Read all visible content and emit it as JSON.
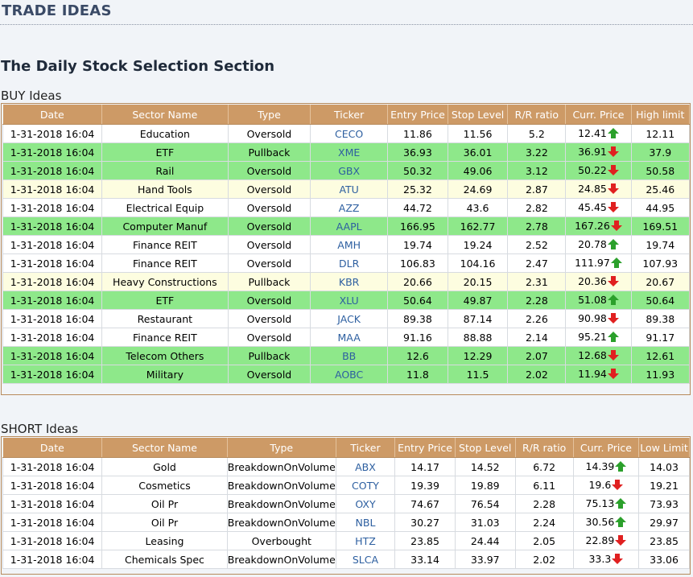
{
  "header": {
    "title": "TRADE IDEAS"
  },
  "section": {
    "title": "The Daily Stock Selection Section"
  },
  "colors": {
    "header": "#cd9a66",
    "green_row": "#8ee88a",
    "yellow_row": "#fdfde0",
    "up": "#2ba02b",
    "down": "#e02020"
  },
  "buy": {
    "label": "BUY Ideas",
    "columns": [
      "Date",
      "Sector Name",
      "Type",
      "Ticker",
      "Entry Price",
      "Stop Level",
      "R/R ratio",
      "Curr. Price",
      "High limit"
    ],
    "rows": [
      {
        "date": "1-31-2018 16:04",
        "sector": "Education",
        "type": "Oversold",
        "ticker": "CECO",
        "entry": "11.86",
        "stop": "11.56",
        "rr": "5.2",
        "curr": "12.41",
        "dir": "up",
        "limit": "12.11",
        "shade": "white"
      },
      {
        "date": "1-31-2018 16:04",
        "sector": "ETF",
        "type": "Pullback",
        "ticker": "XME",
        "entry": "36.93",
        "stop": "36.01",
        "rr": "3.22",
        "curr": "36.91",
        "dir": "down",
        "limit": "37.9",
        "shade": "green"
      },
      {
        "date": "1-31-2018 16:04",
        "sector": "Rail",
        "type": "Oversold",
        "ticker": "GBX",
        "entry": "50.32",
        "stop": "49.06",
        "rr": "3.12",
        "curr": "50.22",
        "dir": "down",
        "limit": "50.58",
        "shade": "green"
      },
      {
        "date": "1-31-2018 16:04",
        "sector": "Hand Tools",
        "type": "Oversold",
        "ticker": "ATU",
        "entry": "25.32",
        "stop": "24.69",
        "rr": "2.87",
        "curr": "24.85",
        "dir": "down",
        "limit": "25.46",
        "shade": "yellow"
      },
      {
        "date": "1-31-2018 16:04",
        "sector": "Electrical Equip",
        "type": "Oversold",
        "ticker": "AZZ",
        "entry": "44.72",
        "stop": "43.6",
        "rr": "2.82",
        "curr": "45.45",
        "dir": "down",
        "limit": "44.95",
        "shade": "white"
      },
      {
        "date": "1-31-2018 16:04",
        "sector": "Computer Manuf",
        "type": "Oversold",
        "ticker": "AAPL",
        "entry": "166.95",
        "stop": "162.77",
        "rr": "2.78",
        "curr": "167.26",
        "dir": "down",
        "limit": "169.51",
        "shade": "green"
      },
      {
        "date": "1-31-2018 16:04",
        "sector": "Finance REIT",
        "type": "Oversold",
        "ticker": "AMH",
        "entry": "19.74",
        "stop": "19.24",
        "rr": "2.52",
        "curr": "20.78",
        "dir": "up",
        "limit": "19.74",
        "shade": "white"
      },
      {
        "date": "1-31-2018 16:04",
        "sector": "Finance REIT",
        "type": "Oversold",
        "ticker": "DLR",
        "entry": "106.83",
        "stop": "104.16",
        "rr": "2.47",
        "curr": "111.97",
        "dir": "up",
        "limit": "107.93",
        "shade": "white"
      },
      {
        "date": "1-31-2018 16:04",
        "sector": "Heavy Constructions",
        "type": "Pullback",
        "ticker": "KBR",
        "entry": "20.66",
        "stop": "20.15",
        "rr": "2.31",
        "curr": "20.36",
        "dir": "down",
        "limit": "20.67",
        "shade": "yellow"
      },
      {
        "date": "1-31-2018 16:04",
        "sector": "ETF",
        "type": "Oversold",
        "ticker": "XLU",
        "entry": "50.64",
        "stop": "49.87",
        "rr": "2.28",
        "curr": "51.08",
        "dir": "up",
        "limit": "50.64",
        "shade": "green"
      },
      {
        "date": "1-31-2018 16:04",
        "sector": "Restaurant",
        "type": "Oversold",
        "ticker": "JACK",
        "entry": "89.38",
        "stop": "87.14",
        "rr": "2.26",
        "curr": "90.98",
        "dir": "down",
        "limit": "89.38",
        "shade": "white"
      },
      {
        "date": "1-31-2018 16:04",
        "sector": "Finance REIT",
        "type": "Oversold",
        "ticker": "MAA",
        "entry": "91.16",
        "stop": "88.88",
        "rr": "2.14",
        "curr": "95.21",
        "dir": "up",
        "limit": "91.17",
        "shade": "white"
      },
      {
        "date": "1-31-2018 16:04",
        "sector": "Telecom Others",
        "type": "Pullback",
        "ticker": "BB",
        "entry": "12.6",
        "stop": "12.29",
        "rr": "2.07",
        "curr": "12.68",
        "dir": "down",
        "limit": "12.61",
        "shade": "green"
      },
      {
        "date": "1-31-2018 16:04",
        "sector": "Military",
        "type": "Oversold",
        "ticker": "AOBC",
        "entry": "11.8",
        "stop": "11.5",
        "rr": "2.02",
        "curr": "11.94",
        "dir": "down",
        "limit": "11.93",
        "shade": "green"
      }
    ]
  },
  "short": {
    "label": "SHORT Ideas",
    "columns": [
      "Date",
      "Sector Name",
      "Type",
      "Ticker",
      "Entry Price",
      "Stop Level",
      "R/R ratio",
      "Curr. Price",
      "Low Limit"
    ],
    "rows": [
      {
        "date": "1-31-2018 16:04",
        "sector": "Gold",
        "type": "BreakdownOnVolume",
        "ticker": "ABX",
        "entry": "14.17",
        "stop": "14.52",
        "rr": "6.72",
        "curr": "14.39",
        "dir": "up",
        "limit": "14.03",
        "shade": "white"
      },
      {
        "date": "1-31-2018 16:04",
        "sector": "Cosmetics",
        "type": "BreakdownOnVolume",
        "ticker": "COTY",
        "entry": "19.39",
        "stop": "19.89",
        "rr": "6.11",
        "curr": "19.6",
        "dir": "down",
        "limit": "19.21",
        "shade": "white"
      },
      {
        "date": "1-31-2018 16:04",
        "sector": "Oil Pr",
        "type": "BreakdownOnVolume",
        "ticker": "OXY",
        "entry": "74.67",
        "stop": "76.54",
        "rr": "2.28",
        "curr": "75.13",
        "dir": "up",
        "limit": "73.93",
        "shade": "white"
      },
      {
        "date": "1-31-2018 16:04",
        "sector": "Oil Pr",
        "type": "BreakdownOnVolume",
        "ticker": "NBL",
        "entry": "30.27",
        "stop": "31.03",
        "rr": "2.24",
        "curr": "30.56",
        "dir": "up",
        "limit": "29.97",
        "shade": "white"
      },
      {
        "date": "1-31-2018 16:04",
        "sector": "Leasing",
        "type": "Overbought",
        "ticker": "HTZ",
        "entry": "23.85",
        "stop": "24.44",
        "rr": "2.05",
        "curr": "22.89",
        "dir": "down",
        "limit": "23.85",
        "shade": "white"
      },
      {
        "date": "1-31-2018 16:04",
        "sector": "Chemicals Spec",
        "type": "BreakdownOnVolume",
        "ticker": "SLCA",
        "entry": "33.14",
        "stop": "33.97",
        "rr": "2.02",
        "curr": "33.3",
        "dir": "down",
        "limit": "33.06",
        "shade": "white"
      }
    ]
  }
}
